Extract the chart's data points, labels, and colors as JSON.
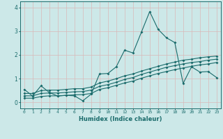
{
  "xlabel": "Humidex (Indice chaleur)",
  "ylabel": "",
  "xlim": [
    -0.5,
    23.5
  ],
  "ylim": [
    -0.25,
    4.25
  ],
  "xticks": [
    0,
    1,
    2,
    3,
    4,
    5,
    6,
    7,
    8,
    9,
    10,
    11,
    12,
    13,
    14,
    15,
    16,
    17,
    18,
    19,
    20,
    21,
    22,
    23
  ],
  "yticks": [
    0,
    1,
    2,
    3,
    4
  ],
  "bg_color": "#cce8e8",
  "line_color": "#1a6b6b",
  "red_grid_color": "#d9b8b8",
  "cyan_grid_color": "#aad4d4",
  "line1_x": [
    0,
    1,
    2,
    3,
    4,
    5,
    6,
    7,
    8,
    9,
    10,
    11,
    12,
    13,
    14,
    15,
    16,
    17,
    18,
    19,
    20,
    21,
    22,
    23
  ],
  "line1_y": [
    0.55,
    0.27,
    0.7,
    0.42,
    0.27,
    0.3,
    0.28,
    0.07,
    0.35,
    1.2,
    1.22,
    1.5,
    2.2,
    2.08,
    2.95,
    3.82,
    3.08,
    2.72,
    2.52,
    0.8,
    1.5,
    1.28,
    1.3,
    1.05
  ],
  "line2_x": [
    0,
    1,
    2,
    3,
    4,
    5,
    6,
    7,
    8,
    9,
    10,
    11,
    12,
    13,
    14,
    15,
    16,
    17,
    18,
    19,
    20,
    21,
    22,
    23
  ],
  "line2_y": [
    0.18,
    0.18,
    0.25,
    0.28,
    0.28,
    0.3,
    0.32,
    0.33,
    0.38,
    0.55,
    0.62,
    0.72,
    0.82,
    0.9,
    1.02,
    1.12,
    1.22,
    1.3,
    1.38,
    1.45,
    1.52,
    1.58,
    1.62,
    1.68
  ],
  "line3_x": [
    0,
    1,
    2,
    3,
    4,
    5,
    6,
    7,
    8,
    9,
    10,
    11,
    12,
    13,
    14,
    15,
    16,
    17,
    18,
    19,
    20,
    21,
    22,
    23
  ],
  "line3_y": [
    0.28,
    0.28,
    0.38,
    0.4,
    0.4,
    0.42,
    0.45,
    0.46,
    0.52,
    0.68,
    0.75,
    0.85,
    0.97,
    1.05,
    1.18,
    1.28,
    1.38,
    1.48,
    1.55,
    1.62,
    1.68,
    1.72,
    1.78,
    1.82
  ],
  "line4_x": [
    0,
    1,
    2,
    3,
    4,
    5,
    6,
    7,
    8,
    9,
    10,
    11,
    12,
    13,
    14,
    15,
    16,
    17,
    18,
    19,
    20,
    21,
    22,
    23
  ],
  "line4_y": [
    0.38,
    0.38,
    0.5,
    0.52,
    0.52,
    0.55,
    0.58,
    0.58,
    0.65,
    0.82,
    0.9,
    1.0,
    1.12,
    1.2,
    1.32,
    1.42,
    1.52,
    1.62,
    1.7,
    1.78,
    1.82,
    1.88,
    1.92,
    1.95
  ]
}
